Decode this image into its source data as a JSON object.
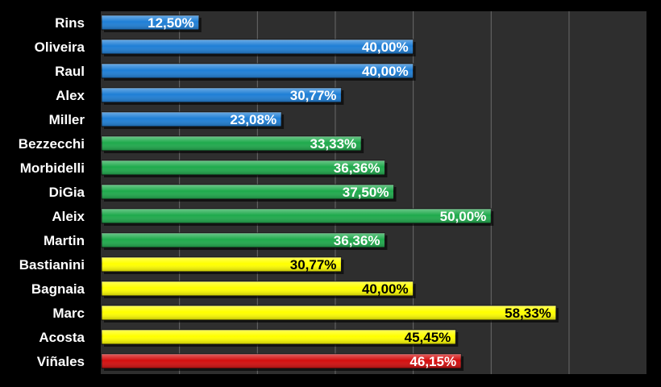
{
  "chart_data": {
    "type": "bar",
    "orientation": "horizontal",
    "grid": true,
    "xlim": [
      0,
      70
    ],
    "categories": [
      "Rins",
      "Oliveira",
      "Raul",
      "Alex",
      "Miller",
      "Bezzecchi",
      "Morbidelli",
      "DiGia",
      "Aleix",
      "Martin",
      "Bastianini",
      "Bagnaia",
      "Marc",
      "Acosta",
      "Viñales"
    ],
    "values": [
      12.5,
      40.0,
      40.0,
      30.77,
      23.08,
      33.33,
      36.36,
      37.5,
      50.0,
      36.36,
      30.77,
      40.0,
      58.33,
      45.45,
      46.15
    ],
    "value_labels": [
      "12,50%",
      "40,00%",
      "40,00%",
      "30,77%",
      "23,08%",
      "33,33%",
      "36,36%",
      "37,50%",
      "50,00%",
      "36,36%",
      "30,77%",
      "40,00%",
      "58,33%",
      "45,45%",
      "46,15%"
    ],
    "bar_colors": [
      "#1f7fd6",
      "#1f7fd6",
      "#1f7fd6",
      "#1f7fd6",
      "#1f7fd6",
      "#1faa4c",
      "#1faa4c",
      "#1faa4c",
      "#1faa4c",
      "#1faa4c",
      "#ffff00",
      "#ffff00",
      "#ffff00",
      "#ffff00",
      "#d40f0f"
    ],
    "label_colors": [
      "#ffffff",
      "#ffffff",
      "#ffffff",
      "#ffffff",
      "#ffffff",
      "#ffffff",
      "#ffffff",
      "#ffffff",
      "#ffffff",
      "#ffffff",
      "#000000",
      "#000000",
      "#000000",
      "#000000",
      "#ffffff"
    ]
  },
  "colors": {
    "background": "#000000",
    "plot_area": "#2e2e2e",
    "gridline": "#6a6a6a"
  }
}
